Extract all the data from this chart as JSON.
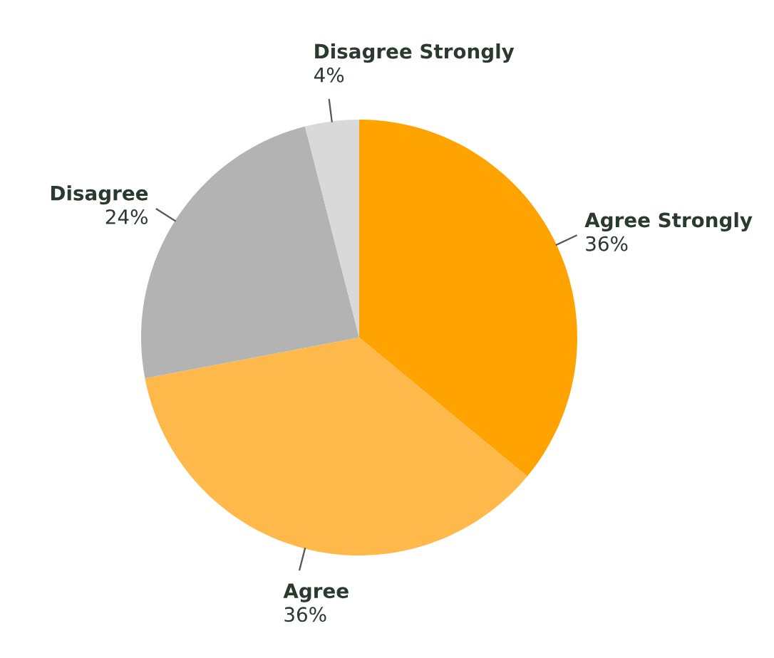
{
  "chart_data": {
    "type": "pie",
    "categories": [
      "Agree Strongly",
      "Agree",
      "Disagree",
      "Disagree Strongly"
    ],
    "values": [
      36,
      36,
      24,
      4
    ],
    "colors": [
      "#ffa300",
      "#ffb94a",
      "#b3b3b3",
      "#d9d9d9"
    ],
    "value_labels": [
      "36%",
      "36%",
      "24%",
      "4%"
    ]
  }
}
